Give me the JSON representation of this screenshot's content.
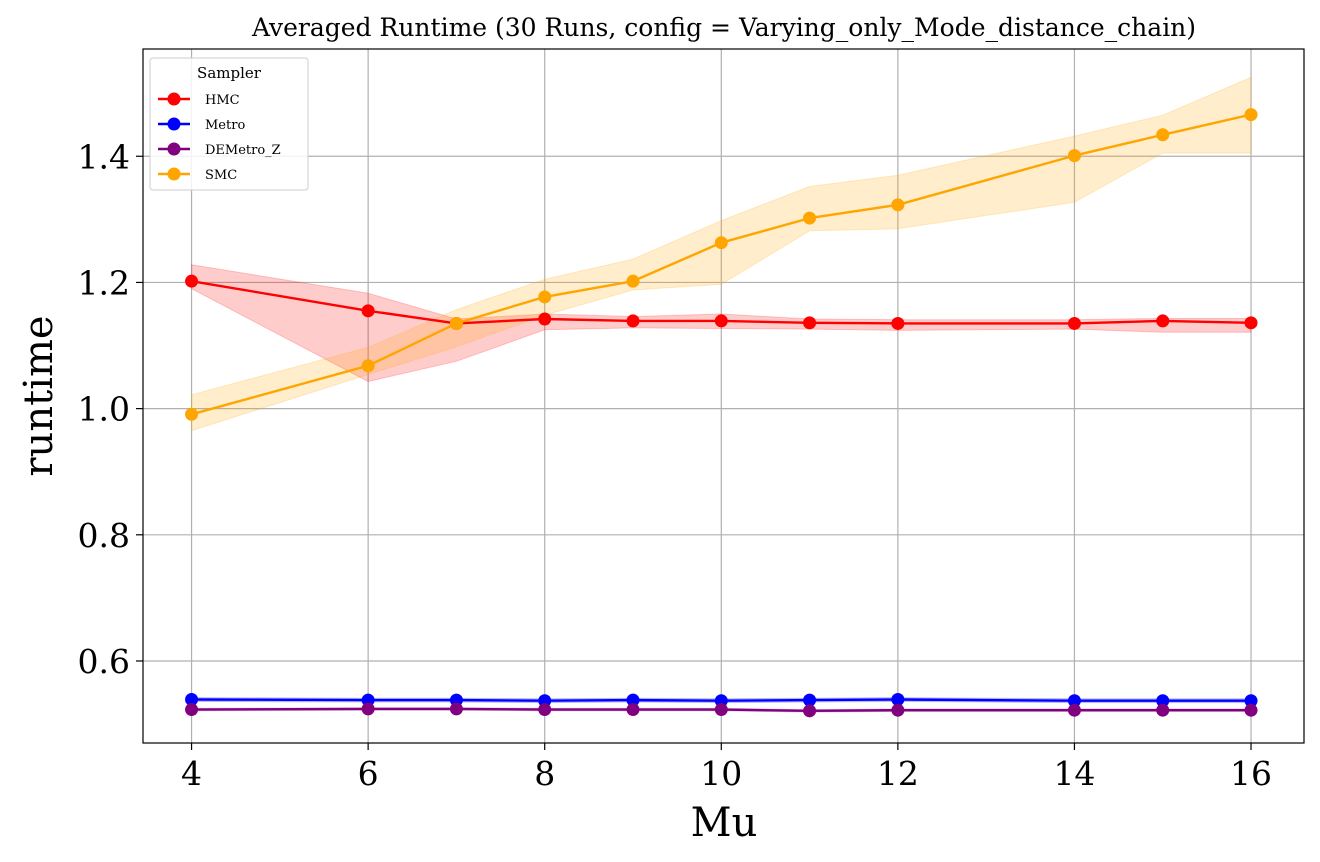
{
  "chart_data": {
    "type": "line",
    "title": "Averaged Runtime (30 Runs, config = Varying_only_Mode_distance_chain)",
    "xlabel": "Mu",
    "ylabel": "runtime",
    "xlim": [
      3.45,
      16.6
    ],
    "ylim": [
      0.47,
      1.57
    ],
    "xticks": [
      4,
      6,
      8,
      10,
      12,
      14,
      16
    ],
    "yticks": [
      0.6,
      0.8,
      1.0,
      1.2,
      1.4
    ],
    "ytick_labels": [
      "0.6",
      "0.8",
      "1.0",
      "1.2",
      "1.4"
    ],
    "grid": true,
    "legend": {
      "title": "Sampler",
      "placement": "upper-left"
    },
    "x": [
      4,
      6,
      7,
      8,
      9,
      10,
      11,
      12,
      14,
      15,
      16
    ],
    "series": [
      {
        "name": "HMC",
        "color": "#ff0000",
        "fill_color": "#ff0000",
        "values": [
          1.202,
          1.155,
          1.135,
          1.142,
          1.139,
          1.139,
          1.136,
          1.135,
          1.135,
          1.139,
          1.136
        ],
        "lower": [
          1.19,
          1.043,
          1.075,
          1.125,
          1.128,
          1.127,
          1.126,
          1.124,
          1.126,
          1.121,
          1.121
        ],
        "upper": [
          1.228,
          1.183,
          1.142,
          1.15,
          1.146,
          1.15,
          1.142,
          1.141,
          1.141,
          1.143,
          1.143
        ]
      },
      {
        "name": "Metro",
        "color": "#0000ff",
        "fill_color": "#0000ff",
        "values": [
          0.539,
          0.538,
          0.538,
          0.537,
          0.538,
          0.537,
          0.538,
          0.539,
          0.537,
          0.537,
          0.537
        ],
        "lower": [
          0.536,
          0.535,
          0.535,
          0.534,
          0.535,
          0.534,
          0.535,
          0.536,
          0.534,
          0.534,
          0.534
        ],
        "upper": [
          0.542,
          0.541,
          0.541,
          0.54,
          0.541,
          0.54,
          0.541,
          0.542,
          0.54,
          0.54,
          0.54
        ]
      },
      {
        "name": "DEMetro_Z",
        "color": "#800080",
        "fill_color": "#800080",
        "values": [
          0.523,
          0.524,
          0.524,
          0.523,
          0.523,
          0.523,
          0.521,
          0.522,
          0.522,
          0.522,
          0.522
        ],
        "lower": [
          0.521,
          0.522,
          0.522,
          0.521,
          0.521,
          0.521,
          0.519,
          0.52,
          0.52,
          0.52,
          0.52
        ],
        "upper": [
          0.525,
          0.526,
          0.526,
          0.525,
          0.525,
          0.525,
          0.523,
          0.524,
          0.524,
          0.524,
          0.524
        ]
      },
      {
        "name": "SMC",
        "color": "#ffa500",
        "fill_color": "#ffa500",
        "values": [
          0.991,
          1.068,
          1.135,
          1.177,
          1.202,
          1.263,
          1.302,
          1.323,
          1.401,
          1.434,
          1.466
        ],
        "lower": [
          0.965,
          1.054,
          1.098,
          1.148,
          1.188,
          1.197,
          1.282,
          1.285,
          1.327,
          1.405,
          1.405
        ],
        "upper": [
          1.022,
          1.097,
          1.157,
          1.205,
          1.237,
          1.298,
          1.352,
          1.37,
          1.432,
          1.465,
          1.525
        ]
      }
    ]
  }
}
